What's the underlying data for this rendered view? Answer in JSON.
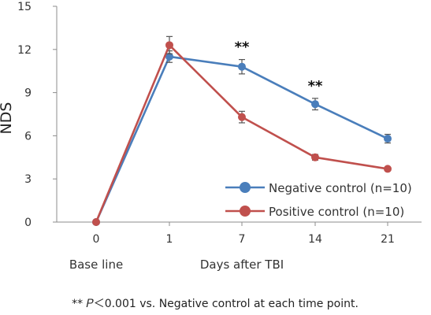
{
  "chart_data": {
    "type": "line",
    "categories": [
      "0",
      "1",
      "7",
      "14",
      "21"
    ],
    "ylabel": "NDS",
    "ylim": [
      0,
      15
    ],
    "yticks": [
      "0",
      "3",
      "6",
      "9",
      "12",
      "15"
    ],
    "grid": false,
    "legend_position": "bottom-right",
    "series": [
      {
        "name": "Negative control (n=10)",
        "color": "#4a7ebb",
        "values": [
          0,
          11.5,
          10.8,
          8.2,
          5.8
        ],
        "errors": [
          0,
          0.4,
          0.5,
          0.4,
          0.3
        ]
      },
      {
        "name": "Positive control  (n=10)",
        "color": "#c0504d",
        "values": [
          0,
          12.3,
          7.3,
          4.5,
          3.7
        ],
        "errors": [
          0,
          0.6,
          0.4,
          0.2,
          0.1
        ]
      }
    ],
    "annotations": [
      {
        "text": "**",
        "category": "7"
      },
      {
        "text": "**",
        "category": "14"
      }
    ],
    "x_annotations": {
      "baseline": "Base line",
      "days": "Days after TBI"
    },
    "footnote": "** 𝑃＜0.001 vs. Negative control at each time point."
  }
}
